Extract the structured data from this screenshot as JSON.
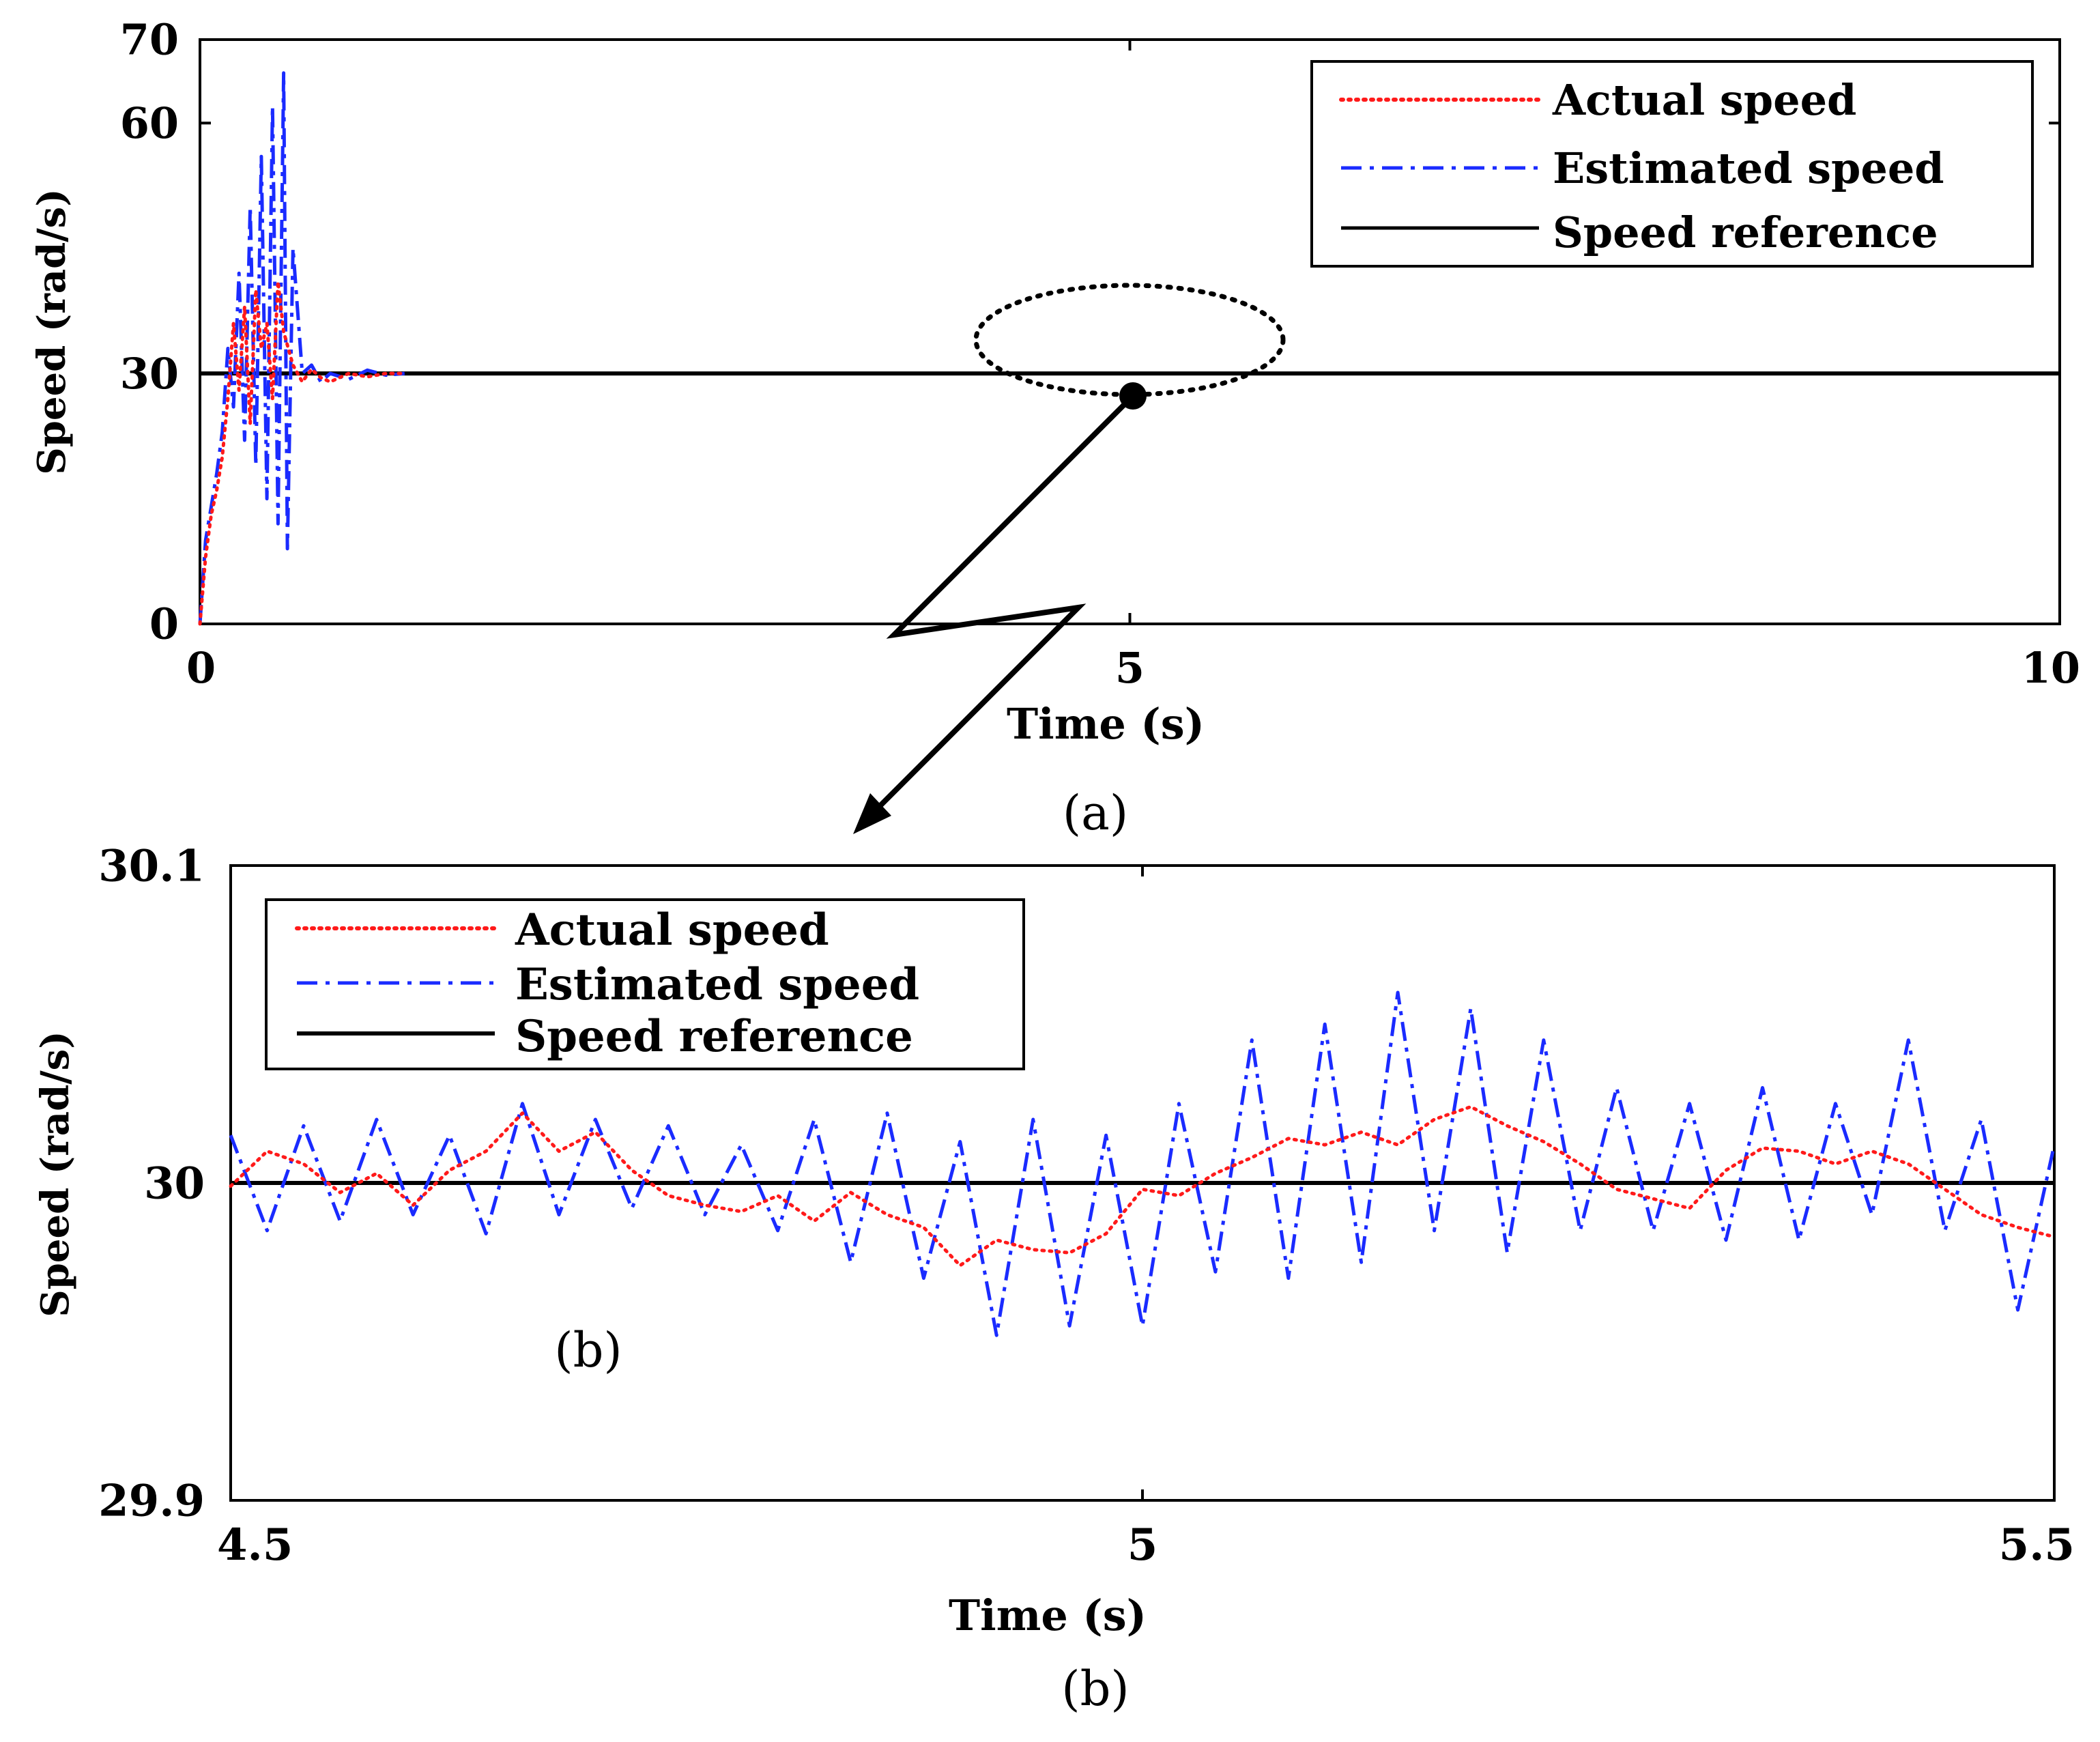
{
  "colors": {
    "actual": "#ff1a1a",
    "estimated": "#1a2bff",
    "reference": "#000000",
    "axes": "#000000"
  },
  "chart_data": [
    {
      "id": "a",
      "type": "line",
      "caption": "(a)",
      "xlabel": "Time (s)",
      "ylabel": "Speed (rad/s)",
      "xlim": [
        0,
        10
      ],
      "ylim": [
        0,
        70
      ],
      "xticks": [
        0,
        5,
        10
      ],
      "xtick_labels": [
        "0",
        "5",
        "10"
      ],
      "yticks": [
        0,
        30,
        60,
        70
      ],
      "ytick_labels": [
        "0",
        "30",
        "60",
        "70"
      ],
      "grid": false,
      "legend": {
        "position": "top-right",
        "entries": [
          "Actual speed",
          "Estimated speed",
          "Speed reference"
        ]
      },
      "series": [
        {
          "name": "Actual speed",
          "style": "dotted",
          "x": [
            0,
            0.03,
            0.06,
            0.09,
            0.12,
            0.15,
            0.18,
            0.21,
            0.24,
            0.27,
            0.3,
            0.33,
            0.36,
            0.39,
            0.42,
            0.45,
            0.5,
            0.55,
            0.6,
            0.65,
            0.7,
            0.8,
            0.9,
            1.0,
            1.1
          ],
          "y": [
            0,
            8,
            13,
            16,
            20,
            27,
            36,
            28,
            38,
            24,
            40,
            33,
            36,
            27,
            41,
            35,
            31,
            29,
            30.5,
            29.5,
            29,
            30,
            29.6,
            30,
            30
          ]
        },
        {
          "name": "Estimated speed",
          "style": "dashdot",
          "x": [
            0,
            0.03,
            0.06,
            0.09,
            0.12,
            0.15,
            0.18,
            0.21,
            0.24,
            0.27,
            0.3,
            0.33,
            0.36,
            0.39,
            0.42,
            0.45,
            0.47,
            0.5,
            0.55,
            0.6,
            0.65,
            0.7,
            0.8,
            0.9,
            1.0,
            1.1
          ],
          "y": [
            0,
            10,
            14,
            18,
            23,
            33,
            26,
            42,
            22,
            50,
            19,
            56,
            15,
            62,
            12,
            66,
            9,
            45,
            30,
            31,
            29,
            30,
            29.3,
            30.4,
            29.8,
            30
          ]
        },
        {
          "name": "Speed reference",
          "style": "solid",
          "x": [
            0,
            10
          ],
          "y": [
            30,
            30
          ]
        }
      ]
    },
    {
      "id": "b",
      "type": "line",
      "caption": "(b)",
      "inner_label": "(b)",
      "xlabel": "Time (s)",
      "ylabel": "Speed (rad/s)",
      "xlim": [
        4.5,
        5.5
      ],
      "ylim": [
        29.9,
        30.1
      ],
      "xticks": [
        4.5,
        5,
        5.5
      ],
      "xtick_labels": [
        "4.5",
        "5",
        "5.5"
      ],
      "yticks": [
        29.9,
        30,
        30.1
      ],
      "ytick_labels": [
        "29.9",
        "30",
        "30.1"
      ],
      "grid": false,
      "legend": {
        "position": "top-left",
        "entries": [
          "Actual speed",
          "Estimated speed",
          "Speed reference"
        ]
      },
      "series": [
        {
          "name": "Actual speed",
          "style": "dotted",
          "x": [
            4.5,
            4.52,
            4.54,
            4.56,
            4.58,
            4.6,
            4.62,
            4.64,
            4.66,
            4.68,
            4.7,
            4.72,
            4.74,
            4.76,
            4.78,
            4.8,
            4.82,
            4.84,
            4.86,
            4.88,
            4.9,
            4.92,
            4.94,
            4.96,
            4.98,
            5.0,
            5.02,
            5.04,
            5.06,
            5.08,
            5.1,
            5.12,
            5.14,
            5.16,
            5.18,
            5.2,
            5.22,
            5.24,
            5.26,
            5.28,
            5.3,
            5.32,
            5.34,
            5.36,
            5.38,
            5.4,
            5.42,
            5.44,
            5.46,
            5.48,
            5.5
          ],
          "y": [
            29.999,
            30.01,
            30.006,
            29.997,
            30.003,
            29.993,
            30.004,
            30.01,
            30.022,
            30.01,
            30.016,
            30.004,
            29.996,
            29.993,
            29.991,
            29.996,
            29.988,
            29.997,
            29.99,
            29.986,
            29.974,
            29.982,
            29.979,
            29.978,
            29.984,
            29.998,
            29.996,
            30.003,
            30.008,
            30.014,
            30.012,
            30.016,
            30.012,
            30.02,
            30.024,
            30.018,
            30.013,
            30.006,
            29.998,
            29.995,
            29.992,
            30.004,
            30.011,
            30.01,
            30.006,
            30.01,
            30.006,
            29.998,
            29.99,
            29.986,
            29.983
          ]
        },
        {
          "name": "Estimated speed",
          "style": "dashdot",
          "x": [
            4.5,
            4.52,
            4.54,
            4.56,
            4.58,
            4.6,
            4.62,
            4.64,
            4.66,
            4.68,
            4.7,
            4.72,
            4.74,
            4.76,
            4.78,
            4.8,
            4.82,
            4.84,
            4.86,
            4.88,
            4.9,
            4.92,
            4.94,
            4.96,
            4.98,
            5.0,
            5.02,
            5.04,
            5.06,
            5.08,
            5.1,
            5.12,
            5.14,
            5.16,
            5.18,
            5.2,
            5.22,
            5.24,
            5.26,
            5.28,
            5.3,
            5.32,
            5.34,
            5.36,
            5.38,
            5.4,
            5.42,
            5.44,
            5.46,
            5.48,
            5.5
          ],
          "y": [
            30.015,
            29.985,
            30.018,
            29.988,
            30.02,
            29.99,
            30.015,
            29.984,
            30.025,
            29.99,
            30.02,
            29.992,
            30.018,
            29.99,
            30.012,
            29.985,
            30.02,
            29.975,
            30.022,
            29.97,
            30.013,
            29.952,
            30.02,
            29.955,
            30.015,
            29.955,
            30.025,
            29.972,
            30.045,
            29.97,
            30.05,
            29.975,
            30.06,
            29.985,
            30.055,
            29.978,
            30.045,
            29.985,
            30.03,
            29.985,
            30.025,
            29.982,
            30.03,
            29.982,
            30.025,
            29.99,
            30.045,
            29.985,
            30.02,
            29.96,
            30.012
          ]
        },
        {
          "name": "Speed reference",
          "style": "solid",
          "x": [
            4.5,
            5.5
          ],
          "y": [
            30,
            30
          ]
        }
      ]
    }
  ]
}
